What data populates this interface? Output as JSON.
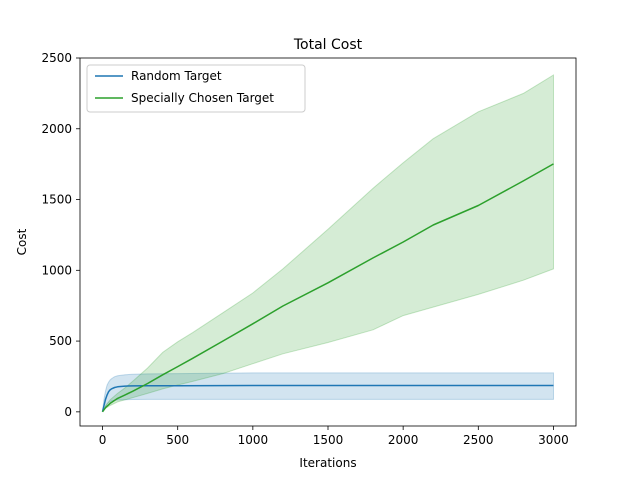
{
  "chart_data": {
    "type": "line",
    "title": "Total Cost",
    "xlabel": "Iterations",
    "ylabel": "Cost",
    "xlim": [
      -150,
      3150
    ],
    "ylim": [
      -100,
      2500
    ],
    "xticks": [
      0,
      500,
      1000,
      1500,
      2000,
      2500,
      3000
    ],
    "yticks": [
      0,
      500,
      1000,
      1500,
      2000,
      2500
    ],
    "grid": false,
    "legend": "top-left",
    "series": [
      {
        "name": "Random Target",
        "color": "#1f77b4",
        "band_color": "#1f77b4",
        "x": [
          0,
          10,
          20,
          30,
          40,
          50,
          60,
          80,
          100,
          150,
          200,
          300,
          500,
          1000,
          1500,
          2000,
          2500,
          3000
        ],
        "y": [
          0,
          45,
          90,
          120,
          142,
          155,
          163,
          172,
          177,
          182,
          183,
          184,
          185,
          186,
          186,
          186,
          186,
          186
        ],
        "lower": [
          0,
          15,
          35,
          55,
          65,
          72,
          77,
          82,
          84,
          86,
          87,
          88,
          88,
          88,
          88,
          88,
          88,
          88
        ],
        "upper": [
          0,
          90,
          150,
          190,
          210,
          225,
          235,
          248,
          255,
          262,
          265,
          268,
          270,
          275,
          275,
          275,
          275,
          275
        ]
      },
      {
        "name": "Specially Chosen Target",
        "color": "#2ca02c",
        "band_color": "#2ca02c",
        "x": [
          0,
          20,
          50,
          100,
          150,
          200,
          300,
          400,
          500,
          600,
          800,
          1000,
          1200,
          1500,
          1800,
          2000,
          2200,
          2500,
          2800,
          3000
        ],
        "y": [
          0,
          30,
          60,
          95,
          120,
          145,
          200,
          262,
          320,
          378,
          500,
          622,
          748,
          912,
          1088,
          1200,
          1320,
          1458,
          1632,
          1752
        ],
        "lower": [
          0,
          25,
          45,
          70,
          85,
          100,
          130,
          162,
          190,
          215,
          270,
          340,
          410,
          490,
          580,
          680,
          740,
          830,
          930,
          1010
        ],
        "upper": [
          0,
          45,
          85,
          130,
          170,
          215,
          310,
          420,
          495,
          560,
          700,
          840,
          1010,
          1290,
          1580,
          1760,
          1930,
          2120,
          2250,
          2380
        ]
      }
    ]
  }
}
